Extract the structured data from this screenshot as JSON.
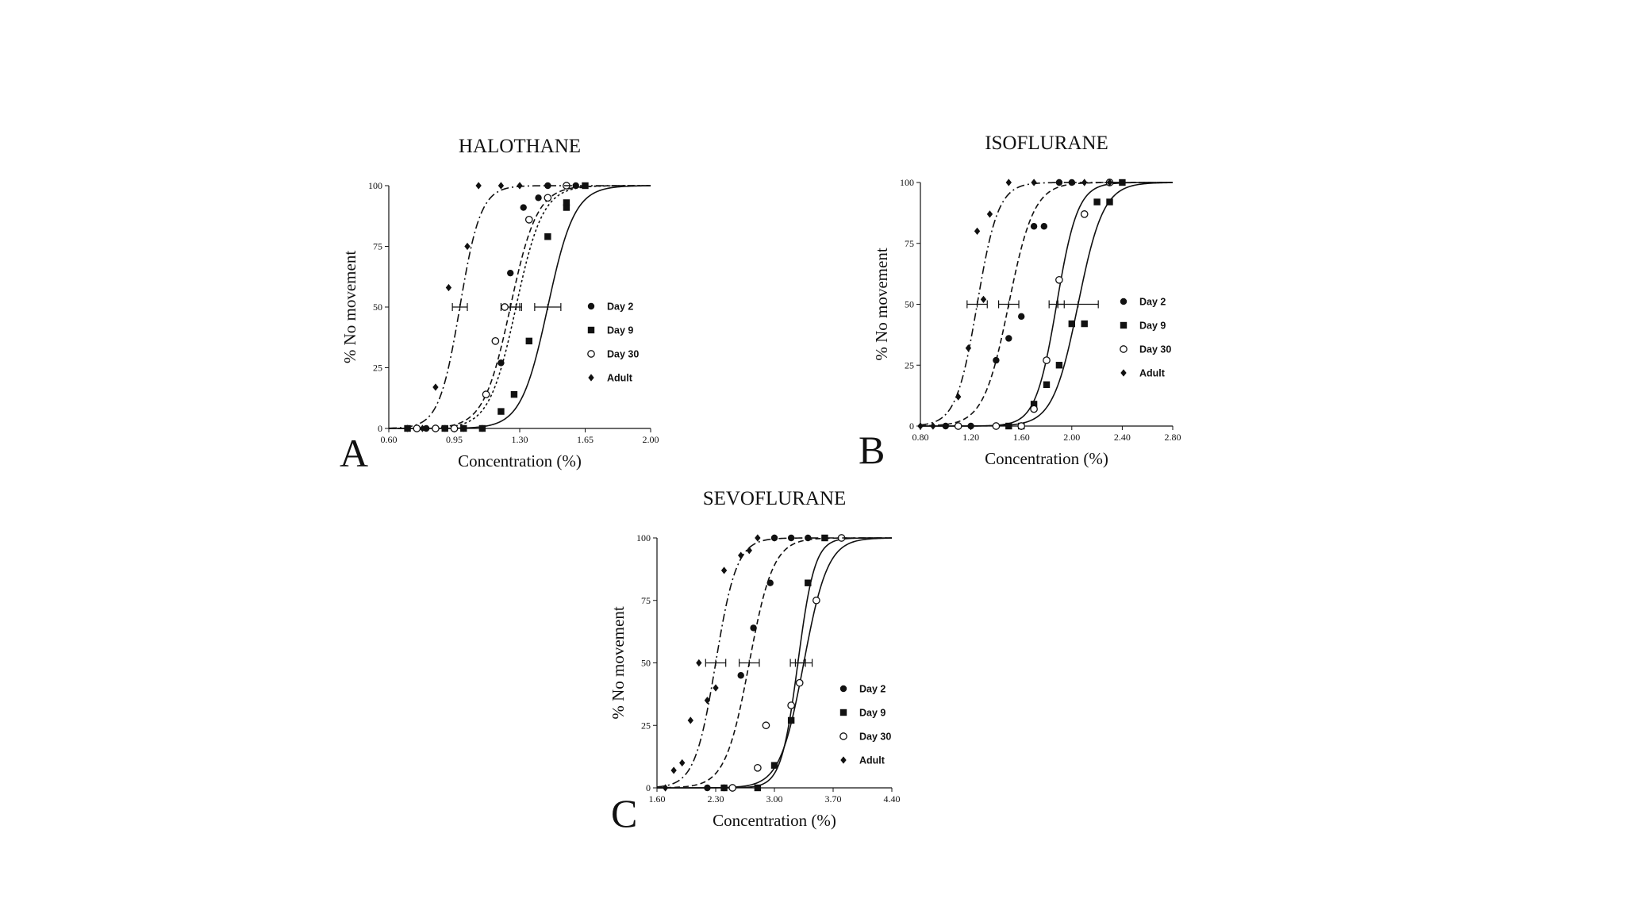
{
  "chart_data": [
    {
      "type": "scatter",
      "panel": "A",
      "title": "HALOTHANE",
      "xlabel": "Concentration (%)",
      "ylabel": "% No movement",
      "xlim": [
        0.6,
        2.0
      ],
      "ylim": [
        0,
        100
      ],
      "x_ticks": [
        "0.60",
        "0.95",
        "1.30",
        "1.65",
        "2.00"
      ],
      "y_ticks": [
        "0",
        "25",
        "50",
        "75",
        "100"
      ],
      "legend_placement": "center-right",
      "series": [
        {
          "name": "Day 2",
          "marker": "circle-filled",
          "curve_style": "dashed",
          "ec50": 1.25,
          "ec50_error": 0.05,
          "slope": 14,
          "points": [
            [
              0.7,
              0
            ],
            [
              0.8,
              0
            ],
            [
              0.9,
              0
            ],
            [
              1.0,
              0
            ],
            [
              1.1,
              0
            ],
            [
              1.2,
              27
            ],
            [
              1.25,
              64
            ],
            [
              1.32,
              91
            ],
            [
              1.4,
              95
            ],
            [
              1.45,
              100
            ],
            [
              1.55,
              100
            ],
            [
              1.6,
              100
            ]
          ]
        },
        {
          "name": "Day 9",
          "marker": "square-filled",
          "curve_style": "solid",
          "ec50": 1.45,
          "ec50_error": 0.07,
          "slope": 14,
          "points": [
            [
              0.7,
              0
            ],
            [
              0.9,
              0
            ],
            [
              1.0,
              0
            ],
            [
              1.1,
              0
            ],
            [
              1.2,
              7
            ],
            [
              1.27,
              14
            ],
            [
              1.35,
              36
            ],
            [
              1.45,
              79
            ],
            [
              1.55,
              91
            ],
            [
              1.55,
              93
            ],
            [
              1.65,
              100
            ]
          ]
        },
        {
          "name": "Day 30",
          "marker": "circle-open",
          "curve_style": "dotted",
          "ec50": 1.28,
          "ec50_error": 0.03,
          "slope": 14,
          "points": [
            [
              0.75,
              0
            ],
            [
              0.85,
              0
            ],
            [
              0.95,
              0
            ],
            [
              1.12,
              14
            ],
            [
              1.17,
              36
            ],
            [
              1.22,
              50
            ],
            [
              1.35,
              86
            ],
            [
              1.45,
              95
            ],
            [
              1.55,
              100
            ]
          ]
        },
        {
          "name": "Adult",
          "marker": "diamond-filled",
          "curve_style": "dash-dot",
          "ec50": 0.98,
          "ec50_error": 0.04,
          "slope": 18,
          "points": [
            [
              0.7,
              0
            ],
            [
              0.78,
              0
            ],
            [
              0.85,
              17
            ],
            [
              0.92,
              58
            ],
            [
              1.02,
              75
            ],
            [
              1.08,
              100
            ],
            [
              1.2,
              100
            ],
            [
              1.3,
              100
            ]
          ]
        }
      ]
    },
    {
      "type": "scatter",
      "panel": "B",
      "title": "ISOFLURANE",
      "xlabel": "Concentration (%)",
      "ylabel": "% No movement",
      "xlim": [
        0.8,
        2.8
      ],
      "ylim": [
        0,
        100
      ],
      "x_ticks": [
        "0.80",
        "1.20",
        "1.60",
        "2.00",
        "2.40",
        "2.80"
      ],
      "y_ticks": [
        "0",
        "25",
        "50",
        "75",
        "100"
      ],
      "legend_placement": "center-right",
      "series": [
        {
          "name": "Day 2",
          "marker": "circle-filled",
          "curve_style": "dashed",
          "ec50": 1.5,
          "ec50_error": 0.08,
          "slope": 10,
          "points": [
            [
              1.0,
              0
            ],
            [
              1.1,
              0
            ],
            [
              1.2,
              0
            ],
            [
              1.4,
              27
            ],
            [
              1.5,
              36
            ],
            [
              1.6,
              45
            ],
            [
              1.7,
              82
            ],
            [
              1.78,
              82
            ],
            [
              1.9,
              100
            ],
            [
              2.0,
              100
            ]
          ]
        },
        {
          "name": "Day 9",
          "marker": "square-filled",
          "curve_style": "solid",
          "ec50": 2.05,
          "ec50_error": 0.16,
          "slope": 10,
          "points": [
            [
              1.5,
              0
            ],
            [
              1.6,
              0
            ],
            [
              1.7,
              9
            ],
            [
              1.8,
              17
            ],
            [
              1.9,
              25
            ],
            [
              2.0,
              42
            ],
            [
              2.1,
              42
            ],
            [
              2.2,
              92
            ],
            [
              2.3,
              92
            ],
            [
              2.4,
              100
            ]
          ]
        },
        {
          "name": "Day 30",
          "marker": "circle-open",
          "curve_style": "solid",
          "ec50": 1.88,
          "ec50_error": 0.06,
          "slope": 12,
          "points": [
            [
              1.1,
              0
            ],
            [
              1.4,
              0
            ],
            [
              1.6,
              0
            ],
            [
              1.7,
              7
            ],
            [
              1.8,
              27
            ],
            [
              1.9,
              60
            ],
            [
              2.1,
              87
            ],
            [
              2.3,
              100
            ]
          ]
        },
        {
          "name": "Adult",
          "marker": "diamond-filled",
          "curve_style": "dash-dot",
          "ec50": 1.25,
          "ec50_error": 0.08,
          "slope": 12,
          "points": [
            [
              0.8,
              0
            ],
            [
              0.9,
              0
            ],
            [
              1.1,
              12
            ],
            [
              1.18,
              32
            ],
            [
              1.3,
              52
            ],
            [
              1.25,
              80
            ],
            [
              1.35,
              87
            ],
            [
              1.5,
              100
            ],
            [
              1.7,
              100
            ],
            [
              1.9,
              100
            ],
            [
              2.1,
              100
            ],
            [
              2.3,
              100
            ]
          ]
        }
      ]
    },
    {
      "type": "scatter",
      "panel": "C",
      "title": "SEVOFLURANE",
      "xlabel": "Concentration (%)",
      "ylabel": "% No movement",
      "xlim": [
        1.6,
        4.4
      ],
      "ylim": [
        0,
        100
      ],
      "x_ticks": [
        "1.60",
        "2.30",
        "3.00",
        "3.70",
        "4.40"
      ],
      "y_ticks": [
        "0",
        "25",
        "50",
        "75",
        "100"
      ],
      "legend_placement": "center-right",
      "series": [
        {
          "name": "Day 2",
          "marker": "circle-filled",
          "curve_style": "dashed",
          "ec50": 2.7,
          "ec50_error": 0.12,
          "slope": 7,
          "points": [
            [
              2.2,
              0
            ],
            [
              2.4,
              0
            ],
            [
              2.6,
              45
            ],
            [
              2.75,
              64
            ],
            [
              2.95,
              82
            ],
            [
              3.0,
              100
            ],
            [
              3.2,
              100
            ],
            [
              3.4,
              100
            ]
          ]
        },
        {
          "name": "Day 9",
          "marker": "square-filled",
          "curve_style": "solid",
          "ec50": 3.28,
          "ec50_error": 0.09,
          "slope": 10,
          "points": [
            [
              2.4,
              0
            ],
            [
              2.8,
              0
            ],
            [
              3.0,
              9
            ],
            [
              3.2,
              27
            ],
            [
              3.4,
              82
            ],
            [
              3.6,
              100
            ]
          ]
        },
        {
          "name": "Day 30",
          "marker": "circle-open",
          "curve_style": "solid",
          "ec50": 3.35,
          "ec50_error": 0.1,
          "slope": 7,
          "points": [
            [
              2.5,
              0
            ],
            [
              2.8,
              8
            ],
            [
              2.9,
              25
            ],
            [
              3.2,
              33
            ],
            [
              3.3,
              42
            ],
            [
              3.5,
              75
            ],
            [
              3.8,
              100
            ]
          ]
        },
        {
          "name": "Adult",
          "marker": "diamond-filled",
          "curve_style": "dash-dot",
          "ec50": 2.3,
          "ec50_error": 0.12,
          "slope": 8,
          "points": [
            [
              1.7,
              0
            ],
            [
              1.8,
              7
            ],
            [
              1.9,
              10
            ],
            [
              2.0,
              27
            ],
            [
              2.1,
              50
            ],
            [
              2.2,
              35
            ],
            [
              2.3,
              40
            ],
            [
              2.4,
              87
            ],
            [
              2.6,
              93
            ],
            [
              2.7,
              95
            ],
            [
              2.8,
              100
            ],
            [
              3.0,
              100
            ]
          ]
        }
      ]
    }
  ]
}
